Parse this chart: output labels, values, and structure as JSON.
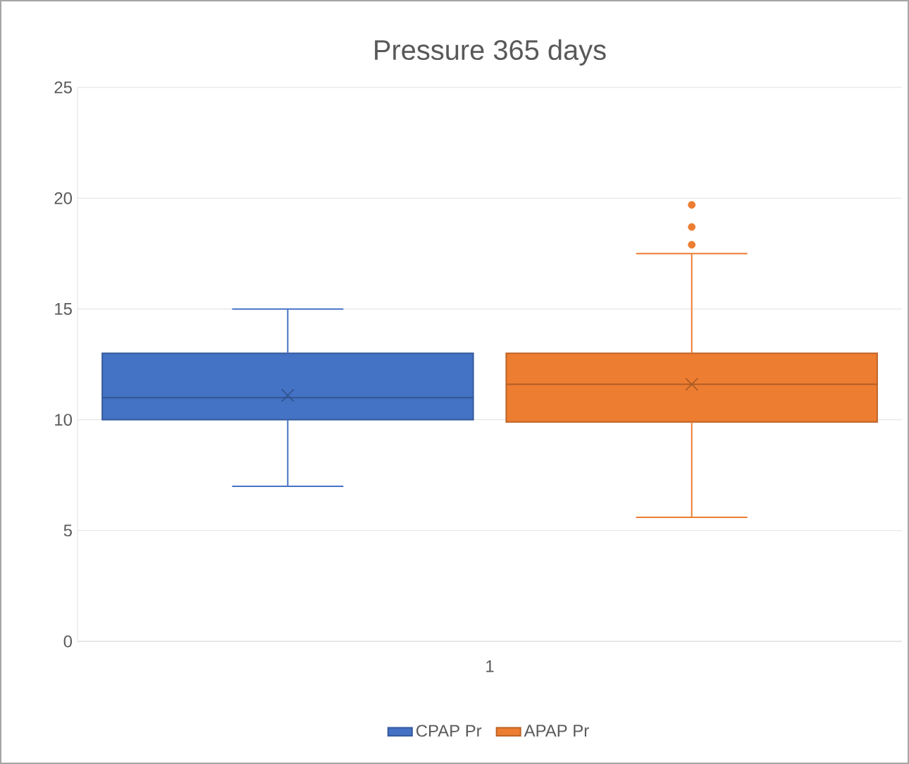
{
  "chart_data": {
    "type": "box",
    "title": "Pressure 365 days",
    "categories": [
      "1"
    ],
    "series": [
      {
        "name": "CPAP Pr",
        "color": "#4472c4",
        "boxes": [
          {
            "low": 7,
            "q1": 10,
            "median": 11,
            "q3": 13,
            "high": 15,
            "mean": 11.1
          }
        ]
      },
      {
        "name": "APAP Pr",
        "color": "#ed7d31",
        "boxes": [
          {
            "low": 5.6,
            "q1": 9.9,
            "median": 11.6,
            "q3": 13,
            "high": 17.5,
            "mean": 11.6,
            "outliers": [
              17.9,
              18.7,
              19.7
            ]
          }
        ]
      }
    ],
    "ylim": [
      0,
      25
    ],
    "yticks": [
      0,
      5,
      10,
      15,
      20,
      25
    ],
    "grid": "y",
    "legend": "bottom"
  }
}
